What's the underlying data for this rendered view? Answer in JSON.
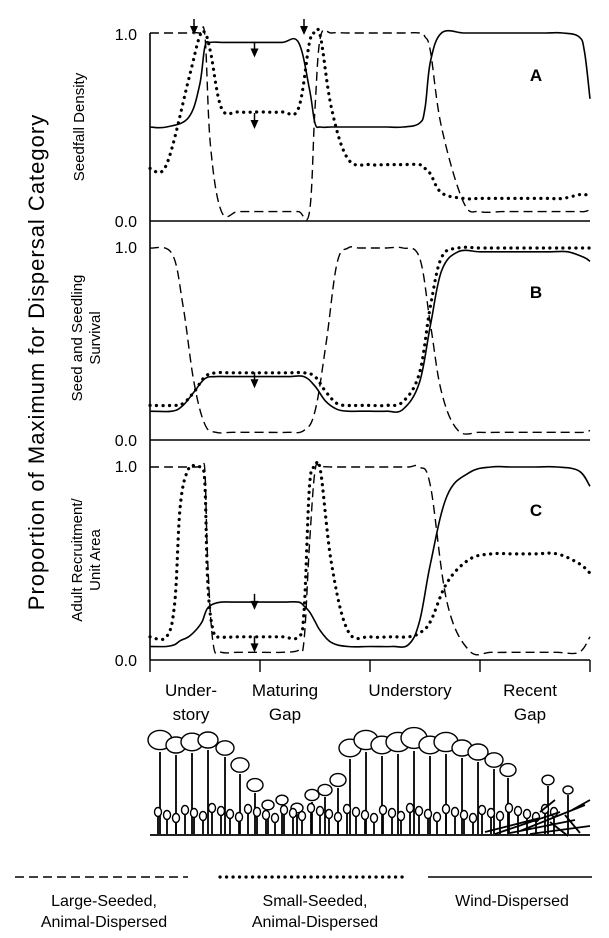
{
  "figure": {
    "ylabel": "Proportion of Maximum for Dispersal Category"
  },
  "chart_data": [
    {
      "type": "line",
      "panel_label": "A",
      "ylabel": "Seedfall Density",
      "ylim": [
        0,
        1
      ],
      "yticks": [
        "1.0",
        "0.0"
      ],
      "x": [
        0,
        0.3,
        0.7,
        0.9,
        1.0,
        1.1,
        1.3,
        1.6,
        2.0,
        2.4,
        2.7,
        2.9,
        3.0,
        3.1,
        3.3,
        3.6,
        4.0,
        4.3,
        4.6,
        4.9,
        5.0,
        5.1,
        5.3,
        5.7,
        6.0,
        6.4,
        6.6,
        6.8,
        7.2,
        7.5,
        7.8,
        7.9,
        8.0
      ],
      "series": [
        {
          "name": "Large-Seeded, Animal-Dispersed",
          "style": "dashed",
          "values": [
            1.0,
            1.0,
            1.0,
            1.0,
            0.98,
            0.4,
            0.05,
            0.05,
            0.05,
            0.05,
            0.05,
            0.05,
            0.6,
            0.98,
            1.0,
            1.0,
            1.0,
            1.0,
            1.0,
            1.0,
            0.98,
            0.9,
            0.5,
            0.1,
            0.05,
            0.05,
            0.05,
            0.05,
            0.05,
            0.05,
            0.05,
            0.05,
            0.06
          ]
        },
        {
          "name": "Small-Seeded, Animal-Dispersed",
          "style": "dotted",
          "values": [
            0.28,
            0.3,
            0.75,
            0.98,
            1.0,
            0.9,
            0.6,
            0.58,
            0.58,
            0.58,
            0.6,
            0.95,
            1.0,
            0.98,
            0.6,
            0.33,
            0.3,
            0.3,
            0.3,
            0.3,
            0.28,
            0.25,
            0.15,
            0.12,
            0.12,
            0.12,
            0.12,
            0.12,
            0.12,
            0.12,
            0.14,
            0.14,
            0.14
          ]
        },
        {
          "name": "Wind-Dispersed",
          "style": "solid",
          "values": [
            0.5,
            0.5,
            0.55,
            0.72,
            0.93,
            0.95,
            0.95,
            0.95,
            0.95,
            0.95,
            0.95,
            0.7,
            0.52,
            0.5,
            0.5,
            0.5,
            0.5,
            0.5,
            0.5,
            0.52,
            0.6,
            0.85,
            1.0,
            1.0,
            1.0,
            1.0,
            1.0,
            1.0,
            1.0,
            1.0,
            0.98,
            0.9,
            0.65
          ]
        }
      ],
      "arrows": [
        [
          0.8,
          1.0
        ],
        [
          1.9,
          0.88
        ],
        [
          1.9,
          0.5
        ],
        [
          2.8,
          1.0
        ]
      ]
    },
    {
      "type": "line",
      "panel_label": "B",
      "ylabel": "Seed and Seedling Survival",
      "ylim": [
        0,
        1
      ],
      "yticks": [
        "1.0",
        "0.0"
      ],
      "x": [
        0,
        0.4,
        0.6,
        0.8,
        1.0,
        1.2,
        1.5,
        2.0,
        2.5,
        2.8,
        3.0,
        3.2,
        3.4,
        3.6,
        3.8,
        4.0,
        4.3,
        4.6,
        4.9,
        5.1,
        5.3,
        5.6,
        6.0,
        6.4,
        6.7,
        7.0,
        7.3,
        7.6,
        7.9,
        8.0
      ],
      "series": [
        {
          "name": "Large-Seeded, Animal-Dispersed",
          "style": "dashed",
          "values": [
            1.0,
            0.97,
            0.7,
            0.3,
            0.08,
            0.04,
            0.04,
            0.04,
            0.04,
            0.05,
            0.15,
            0.5,
            0.92,
            1.0,
            1.0,
            1.0,
            1.0,
            1.0,
            0.95,
            0.6,
            0.25,
            0.05,
            0.04,
            0.04,
            0.04,
            0.04,
            0.04,
            0.04,
            0.04,
            0.05
          ]
        },
        {
          "name": "Small-Seeded, Animal-Dispersed",
          "style": "dotted",
          "values": [
            0.18,
            0.18,
            0.19,
            0.25,
            0.33,
            0.35,
            0.35,
            0.35,
            0.35,
            0.35,
            0.33,
            0.25,
            0.19,
            0.18,
            0.18,
            0.18,
            0.18,
            0.2,
            0.35,
            0.7,
            0.95,
            1.0,
            1.0,
            1.0,
            1.0,
            1.0,
            1.0,
            1.0,
            1.0,
            1.0
          ]
        },
        {
          "name": "Wind-Dispersed",
          "style": "solid",
          "values": [
            0.15,
            0.15,
            0.18,
            0.25,
            0.32,
            0.33,
            0.33,
            0.33,
            0.33,
            0.33,
            0.28,
            0.2,
            0.16,
            0.15,
            0.15,
            0.15,
            0.15,
            0.16,
            0.3,
            0.6,
            0.88,
            0.98,
            0.98,
            0.98,
            0.98,
            0.98,
            0.98,
            0.98,
            0.95,
            0.93
          ]
        }
      ],
      "arrows": [
        [
          1.9,
          0.28
        ]
      ]
    },
    {
      "type": "line",
      "panel_label": "C",
      "ylabel": "Adult Recruitment/ Unit Area",
      "ylim": [
        0,
        1
      ],
      "yticks": [
        "1.0",
        "0.0"
      ],
      "x": [
        0,
        0.3,
        0.45,
        0.55,
        0.7,
        0.85,
        0.95,
        1.0,
        1.05,
        1.15,
        1.3,
        1.6,
        2.0,
        2.4,
        2.7,
        2.8,
        2.9,
        3.0,
        3.1,
        3.3,
        3.6,
        4.0,
        4.4,
        4.7,
        4.9,
        5.1,
        5.4,
        5.8,
        6.2,
        6.6,
        7.0,
        7.4,
        7.8,
        8.0
      ],
      "series": [
        {
          "name": "Large-Seeded, Animal-Dispersed",
          "style": "dashed",
          "values": [
            1.0,
            1.0,
            1.0,
            1.0,
            1.0,
            1.0,
            1.0,
            0.97,
            0.5,
            0.08,
            0.04,
            0.04,
            0.04,
            0.04,
            0.05,
            0.1,
            0.6,
            0.98,
            1.0,
            1.0,
            1.0,
            1.0,
            1.0,
            1.0,
            1.0,
            0.9,
            0.3,
            0.05,
            0.04,
            0.04,
            0.04,
            0.04,
            0.04,
            0.12
          ]
        },
        {
          "name": "Small-Seeded, Animal-Dispersed",
          "style": "dotted",
          "values": [
            0.12,
            0.12,
            0.3,
            0.8,
            0.99,
            1.0,
            0.99,
            0.9,
            0.4,
            0.15,
            0.12,
            0.12,
            0.12,
            0.12,
            0.12,
            0.25,
            0.9,
            1.0,
            0.98,
            0.5,
            0.15,
            0.12,
            0.12,
            0.12,
            0.14,
            0.2,
            0.4,
            0.52,
            0.55,
            0.55,
            0.55,
            0.55,
            0.5,
            0.45
          ]
        },
        {
          "name": "Wind-Dispersed",
          "style": "solid",
          "values": [
            0.07,
            0.07,
            0.08,
            0.1,
            0.12,
            0.16,
            0.2,
            0.24,
            0.27,
            0.29,
            0.3,
            0.3,
            0.3,
            0.3,
            0.3,
            0.28,
            0.25,
            0.2,
            0.15,
            0.09,
            0.07,
            0.07,
            0.07,
            0.08,
            0.2,
            0.5,
            0.85,
            0.97,
            1.0,
            1.0,
            1.0,
            1.0,
            0.98,
            0.9
          ]
        }
      ],
      "arrows": [
        [
          1.9,
          0.27
        ],
        [
          1.9,
          0.05
        ]
      ]
    }
  ],
  "zones": [
    {
      "label_lines": [
        "Under-",
        "story"
      ]
    },
    {
      "label_lines": [
        "Maturing",
        "Gap"
      ]
    },
    {
      "label_lines": [
        "Understory"
      ]
    },
    {
      "label_lines": [
        "Recent",
        "Gap"
      ]
    }
  ],
  "legend": [
    {
      "label_lines": [
        "Large-Seeded,",
        "Animal-Dispersed"
      ],
      "style": "dashed"
    },
    {
      "label_lines": [
        "Small-Seeded,",
        "Animal-Dispersed"
      ],
      "style": "dotted"
    },
    {
      "label_lines": [
        "Wind-Dispersed"
      ],
      "style": "solid"
    }
  ]
}
